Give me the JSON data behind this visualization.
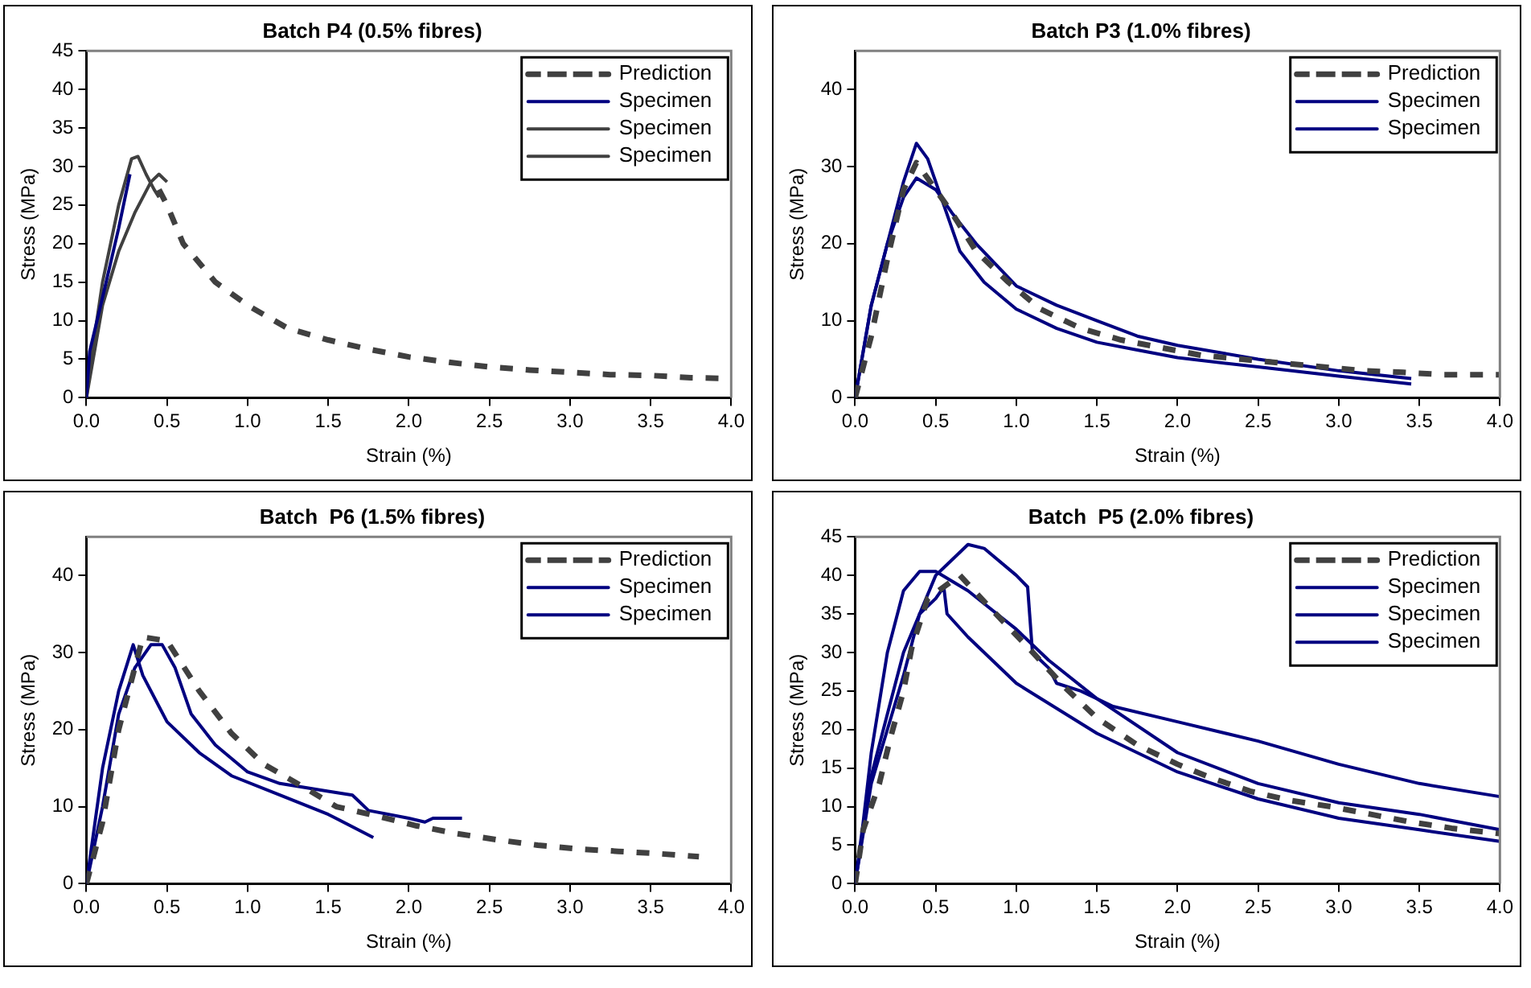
{
  "chart_data": [
    {
      "type": "line",
      "title": "Batch P4 (0.5% fibres)",
      "xlabel": "Strain (%)",
      "ylabel": "Stress (MPa)",
      "xlim": [
        0,
        4
      ],
      "xticks": [
        {
          "value": 0,
          "label": "0.0"
        },
        {
          "value": 0.5,
          "label": "0.5"
        },
        {
          "value": 1,
          "label": "1.0"
        },
        {
          "value": 1.5,
          "label": "1.5"
        },
        {
          "value": 2,
          "label": "2.0"
        },
        {
          "value": 2.5,
          "label": "2.5"
        },
        {
          "value": 3,
          "label": "3.0"
        },
        {
          "value": 3.5,
          "label": "3.5"
        },
        {
          "value": 4,
          "label": "4.0"
        }
      ],
      "ylim": [
        0,
        45
      ],
      "yticks": [
        0,
        5,
        10,
        15,
        20,
        25,
        30,
        35,
        40,
        45
      ],
      "legend": "top right",
      "grid": false,
      "marker": "none",
      "series": [
        {
          "name": "Prediction",
          "color": "#404040",
          "line_style": "dashed",
          "x": [
            0.45,
            0.5,
            0.6,
            0.8,
            1.0,
            1.25,
            1.5,
            1.75,
            2.0,
            2.25,
            2.5,
            2.75,
            3.0,
            3.25,
            3.5,
            3.75,
            4.0
          ],
          "values": [
            27,
            25,
            20,
            15,
            12,
            9,
            7.5,
            6.3,
            5.3,
            4.6,
            4,
            3.6,
            3.3,
            3,
            2.9,
            2.6,
            2.5
          ]
        },
        {
          "name": "Specimen",
          "color": "#000080",
          "line_style": "solid",
          "x": [
            0,
            0.02,
            0.1,
            0.2,
            0.27
          ],
          "values": [
            0,
            6,
            13,
            22,
            29
          ]
        },
        {
          "name": "Specimen",
          "color": "#404040",
          "line_style": "solid",
          "x": [
            0,
            0.05,
            0.1,
            0.2,
            0.28,
            0.32,
            0.37,
            0.42,
            0.45
          ],
          "values": [
            0,
            8,
            15,
            25,
            31,
            31.3,
            29,
            27,
            26
          ]
        },
        {
          "name": "Specimen",
          "color": "#404040",
          "line_style": "solid",
          "x": [
            0,
            0.1,
            0.2,
            0.3,
            0.4,
            0.45,
            0.5
          ],
          "values": [
            0,
            12,
            19,
            24,
            28,
            29,
            28
          ]
        }
      ]
    },
    {
      "type": "line",
      "title": "Batch P3 (1.0% fibres)",
      "xlabel": "Strain (%)",
      "ylabel": "Stress (MPa)",
      "xlim": [
        0,
        4
      ],
      "xticks": [
        {
          "value": 0,
          "label": "0.0"
        },
        {
          "value": 0.5,
          "label": "0.5"
        },
        {
          "value": 1,
          "label": "1.0"
        },
        {
          "value": 1.5,
          "label": "1.5"
        },
        {
          "value": 2,
          "label": "2.0"
        },
        {
          "value": 2.5,
          "label": "2.5"
        },
        {
          "value": 3,
          "label": "3.0"
        },
        {
          "value": 3.5,
          "label": "3.5"
        },
        {
          "value": 4,
          "label": "4.0"
        }
      ],
      "ylim": [
        0,
        45
      ],
      "yticks": [
        0,
        10,
        20,
        30,
        40
      ],
      "legend": "top right",
      "grid": false,
      "marker": "none",
      "series": [
        {
          "name": "Prediction",
          "color": "#404040",
          "line_style": "dashed",
          "x": [
            0,
            0.1,
            0.2,
            0.3,
            0.38,
            0.5,
            0.6,
            0.75,
            0.95,
            1.15,
            1.4,
            1.65,
            1.9,
            2.15,
            2.4,
            2.65,
            2.9,
            3.15,
            3.4,
            3.65,
            3.9,
            4.0
          ],
          "values": [
            0,
            8,
            18,
            27,
            30.5,
            27,
            24,
            19,
            15,
            11.5,
            9,
            7.5,
            6.5,
            5.5,
            5,
            4.5,
            4,
            3.5,
            3.3,
            3,
            3,
            3
          ]
        },
        {
          "name": "Specimen",
          "color": "#000080",
          "line_style": "solid",
          "x": [
            0,
            0.05,
            0.1,
            0.2,
            0.3,
            0.38,
            0.45,
            0.55,
            0.65,
            0.8,
            1.0,
            1.25,
            1.5,
            1.75,
            2.0,
            2.5,
            3.0,
            3.45
          ],
          "values": [
            0,
            6,
            12,
            20,
            28,
            33,
            31,
            25,
            19,
            15,
            11.5,
            9,
            7.2,
            6.2,
            5.2,
            4,
            2.8,
            1.8
          ]
        },
        {
          "name": "Specimen",
          "color": "#000080",
          "line_style": "solid",
          "x": [
            0,
            0.1,
            0.2,
            0.3,
            0.38,
            0.5,
            0.6,
            0.75,
            1.0,
            1.25,
            1.5,
            1.75,
            2.0,
            2.5,
            3.0,
            3.45
          ],
          "values": [
            0,
            12,
            20,
            26,
            28.5,
            27,
            24,
            20,
            14.5,
            12,
            10,
            8,
            6.8,
            5,
            3.5,
            2.5
          ]
        }
      ]
    },
    {
      "type": "line",
      "title": "Batch  P6 (1.5% fibres)",
      "xlabel": "Strain (%)",
      "ylabel": "Stress (MPa)",
      "xlim": [
        0,
        4
      ],
      "xticks": [
        {
          "value": 0,
          "label": "0.0"
        },
        {
          "value": 0.5,
          "label": "0.5"
        },
        {
          "value": 1,
          "label": "1.0"
        },
        {
          "value": 1.5,
          "label": "1.5"
        },
        {
          "value": 2,
          "label": "2.0"
        },
        {
          "value": 2.5,
          "label": "2.5"
        },
        {
          "value": 3,
          "label": "3.0"
        },
        {
          "value": 3.5,
          "label": "3.5"
        },
        {
          "value": 4,
          "label": "4.0"
        }
      ],
      "ylim": [
        0,
        45
      ],
      "yticks": [
        0,
        10,
        20,
        30,
        40
      ],
      "legend": "top right",
      "grid": false,
      "marker": "none",
      "series": [
        {
          "name": "Prediction",
          "color": "#404040",
          "line_style": "dashed",
          "x": [
            0,
            0.1,
            0.2,
            0.35,
            0.5,
            0.7,
            0.9,
            1.1,
            1.35,
            1.55,
            1.8,
            2.05,
            2.3,
            2.55,
            2.8,
            3.05,
            3.3,
            3.55,
            3.8
          ],
          "values": [
            0,
            8,
            20,
            32,
            31.5,
            25,
            19.5,
            15.5,
            12.5,
            10,
            8.8,
            7.5,
            6.5,
            5.7,
            5,
            4.5,
            4.2,
            3.9,
            3.5
          ]
        },
        {
          "name": "Specimen",
          "color": "#000080",
          "line_style": "solid",
          "x": [
            0,
            0.1,
            0.2,
            0.3,
            0.4,
            0.47,
            0.55,
            0.65,
            0.8,
            1.0,
            1.2,
            1.5,
            1.65,
            1.75,
            2.0,
            2.1,
            2.15,
            2.33
          ],
          "values": [
            0,
            10,
            22,
            28,
            31,
            31,
            28,
            22,
            18,
            14.5,
            13,
            12,
            11.5,
            9.5,
            8.5,
            8,
            8.5,
            8.5
          ]
        },
        {
          "name": "Specimen",
          "color": "#000080",
          "line_style": "solid",
          "x": [
            0,
            0.1,
            0.2,
            0.29,
            0.35,
            0.45,
            0.5,
            0.7,
            0.9,
            1.2,
            1.5,
            1.78
          ],
          "values": [
            0,
            15,
            25,
            31,
            27,
            23,
            21,
            17,
            14,
            11.5,
            9,
            6
          ]
        }
      ]
    },
    {
      "type": "line",
      "title": "Batch  P5 (2.0% fibres)",
      "xlabel": "Strain (%)",
      "ylabel": "Stress (MPa)",
      "xlim": [
        0,
        4
      ],
      "xticks": [
        {
          "value": 0,
          "label": "0.0"
        },
        {
          "value": 0.5,
          "label": "0.5"
        },
        {
          "value": 1,
          "label": "1.0"
        },
        {
          "value": 1.5,
          "label": "1.5"
        },
        {
          "value": 2,
          "label": "2.0"
        },
        {
          "value": 2.5,
          "label": "2.5"
        },
        {
          "value": 3,
          "label": "3.0"
        },
        {
          "value": 3.5,
          "label": "3.5"
        },
        {
          "value": 4,
          "label": "4.0"
        }
      ],
      "ylim": [
        0,
        45
      ],
      "yticks": [
        0,
        5,
        10,
        15,
        20,
        25,
        30,
        35,
        40,
        45
      ],
      "legend": "top right",
      "grid": false,
      "marker": "none",
      "series": [
        {
          "name": "Prediction",
          "color": "#404040",
          "line_style": "dashed",
          "x": [
            0,
            0.05,
            0.15,
            0.22,
            0.3,
            0.35,
            0.45,
            0.65,
            0.85,
            1.08,
            1.3,
            1.5,
            1.75,
            2.0,
            2.2,
            2.45,
            2.7,
            2.95,
            3.2,
            3.45,
            3.7,
            4.0
          ],
          "values": [
            0,
            7,
            13,
            19,
            25,
            30.5,
            37,
            40,
            35.5,
            30.5,
            25.5,
            21.5,
            18,
            15.5,
            13.8,
            12,
            10.8,
            10,
            9,
            8,
            7.2,
            6.5
          ]
        },
        {
          "name": "Specimen",
          "color": "#000080",
          "line_style": "solid",
          "x": [
            0,
            0.1,
            0.2,
            0.3,
            0.4,
            0.5,
            0.6,
            0.7,
            0.8,
            1.0,
            1.07,
            1.1,
            1.2,
            1.25,
            1.4,
            1.6,
            2.0,
            2.5,
            3.0,
            3.5,
            4.0
          ],
          "values": [
            0,
            13,
            20,
            27,
            35,
            40,
            42,
            44,
            43.5,
            40,
            38.5,
            30,
            28,
            26,
            25,
            23,
            21,
            18.5,
            15.5,
            13,
            11.3
          ]
        },
        {
          "name": "Specimen",
          "color": "#000080",
          "line_style": "solid",
          "x": [
            0,
            0.05,
            0.1,
            0.2,
            0.3,
            0.4,
            0.5,
            0.7,
            1.0,
            1.2,
            1.5,
            2.0,
            2.5,
            3.0,
            3.5,
            4.0
          ],
          "values": [
            0,
            8,
            17,
            30,
            38,
            40.5,
            40.5,
            38,
            33,
            29,
            24,
            17,
            13,
            10.5,
            9,
            7
          ]
        },
        {
          "name": "Specimen",
          "color": "#000080",
          "line_style": "solid",
          "x": [
            0,
            0.1,
            0.2,
            0.3,
            0.4,
            0.5,
            0.55,
            0.57,
            0.7,
            1.0,
            1.5,
            2.0,
            2.5,
            3.0,
            3.5,
            4.0
          ],
          "values": [
            0,
            14,
            22,
            30,
            35,
            37,
            38.5,
            35,
            32,
            26,
            19.5,
            14.5,
            11,
            8.5,
            7,
            5.5
          ]
        }
      ]
    }
  ]
}
